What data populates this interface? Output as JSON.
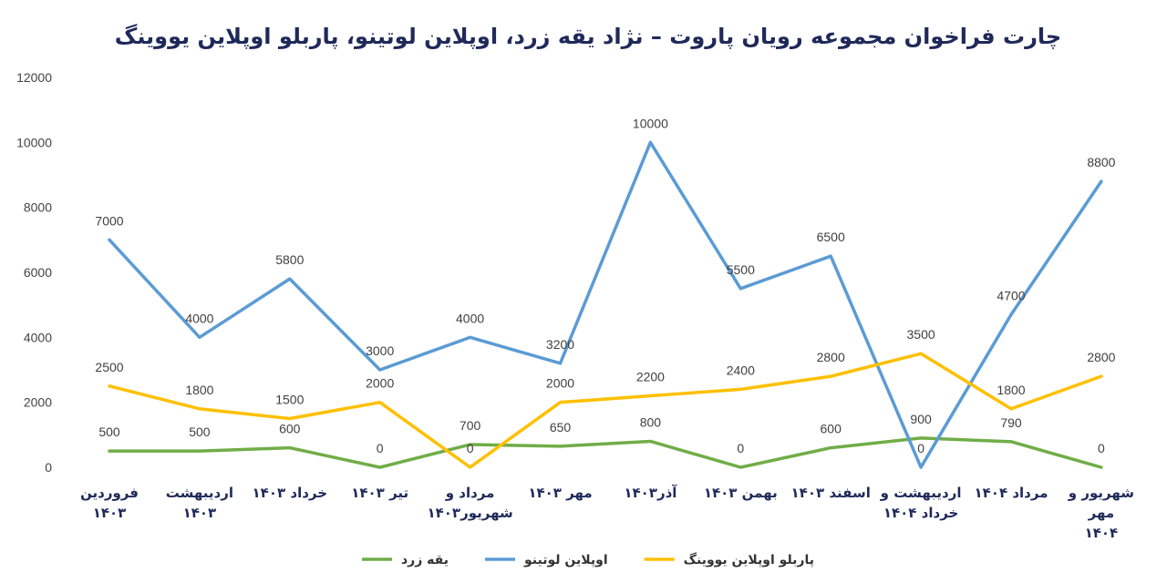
{
  "chart_data": {
    "type": "line",
    "title": "چارت فراخوان مجموعه رویان پاروت – نژاد یقه زرد، اوپلاین لوتینو، پاربلو اوپلاین یووینگ",
    "xlabel": "",
    "ylabel": "",
    "ylim": [
      0,
      12000
    ],
    "yticks": [
      0,
      2000,
      4000,
      6000,
      8000,
      10000,
      12000
    ],
    "grid": false,
    "legend_position": "bottom",
    "categories": [
      [
        "فروردین ۱۴۰۳"
      ],
      [
        "اردیبهشت ۱۴۰۳"
      ],
      [
        "خرداد ۱۴۰۳"
      ],
      [
        "تیر ۱۴۰۳"
      ],
      [
        "مرداد و",
        "شهریور۱۴۰۳"
      ],
      [
        "مهر ۱۴۰۳"
      ],
      [
        "آذر۱۴۰۳"
      ],
      [
        "بهمن ۱۴۰۳"
      ],
      [
        "اسفند ۱۴۰۳"
      ],
      [
        "اردیبهشت و",
        "خرداد ۱۴۰۴"
      ],
      [
        "مرداد ۱۴۰۴"
      ],
      [
        "شهریور و مهر",
        "۱۴۰۴"
      ]
    ],
    "series": [
      {
        "name": "یقه زرد",
        "color": "#70ad47",
        "values": [
          500,
          500,
          600,
          0,
          700,
          650,
          800,
          0,
          600,
          900,
          790,
          0
        ]
      },
      {
        "name": "اوپلاین لوتینو",
        "color": "#5b9bd5",
        "values": [
          7000,
          4000,
          5800,
          3000,
          4000,
          3200,
          10000,
          5500,
          6500,
          0,
          4700,
          8800
        ]
      },
      {
        "name": "پاربلو اوپلاین یووینگ",
        "color": "#ffc000",
        "values": [
          2500,
          1800,
          1500,
          2000,
          0,
          2000,
          2200,
          2400,
          2800,
          3500,
          1800,
          2800
        ]
      }
    ]
  }
}
